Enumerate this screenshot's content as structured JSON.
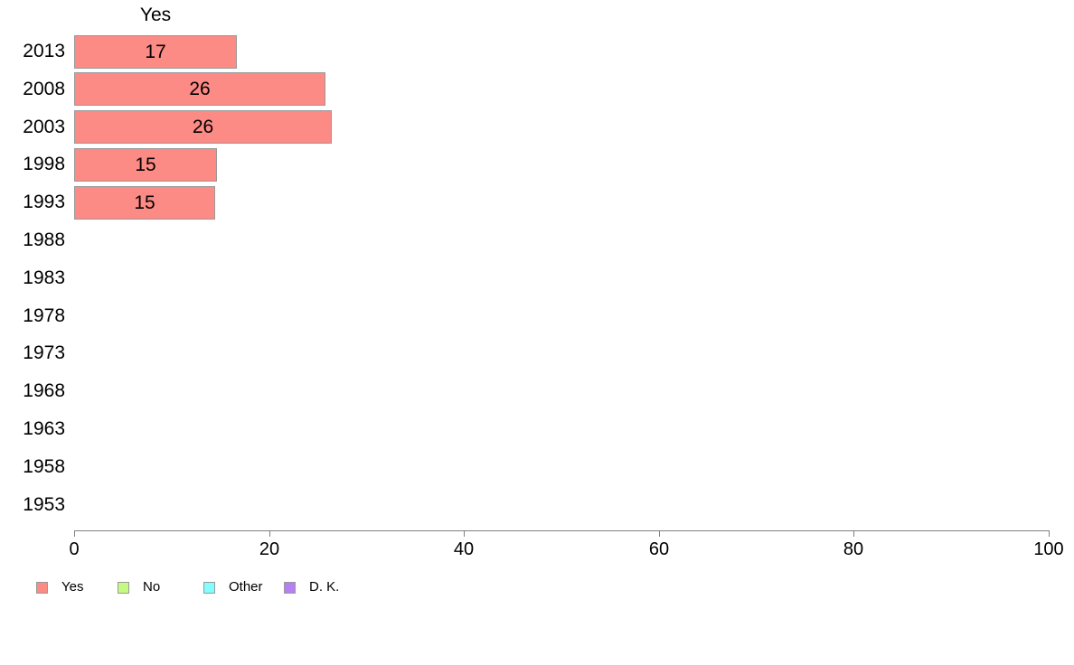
{
  "chart_data": {
    "type": "bar",
    "orientation": "horizontal",
    "title": "Yes",
    "categories": [
      "2013",
      "2008",
      "2003",
      "1998",
      "1993",
      "1988",
      "1983",
      "1978",
      "1973",
      "1968",
      "1963",
      "1958",
      "1953"
    ],
    "values": [
      17,
      26,
      26,
      15,
      15,
      0,
      0,
      0,
      0,
      0,
      0,
      0,
      0
    ],
    "bar_lengths_pct": [
      16.7,
      25.8,
      26.4,
      14.7,
      14.5,
      0,
      0,
      0,
      0,
      0,
      0,
      0,
      0
    ],
    "show_value_labels": true,
    "xlim": [
      0,
      100
    ],
    "x_ticks": [
      "0",
      "20",
      "40",
      "60",
      "80",
      "100"
    ],
    "grid": false,
    "colors": {
      "bar_fill": "#FC8A85",
      "bar_border": "#999999",
      "axis": "#808080",
      "text": "#000000"
    },
    "legend": {
      "position": "bottom",
      "items": [
        {
          "label": "Yes",
          "color": "#FC8A85"
        },
        {
          "label": "No",
          "color": "#C4FA7F"
        },
        {
          "label": "Other",
          "color": "#82FEFE"
        },
        {
          "label": "D. K.",
          "color": "#B581F2"
        }
      ]
    }
  }
}
